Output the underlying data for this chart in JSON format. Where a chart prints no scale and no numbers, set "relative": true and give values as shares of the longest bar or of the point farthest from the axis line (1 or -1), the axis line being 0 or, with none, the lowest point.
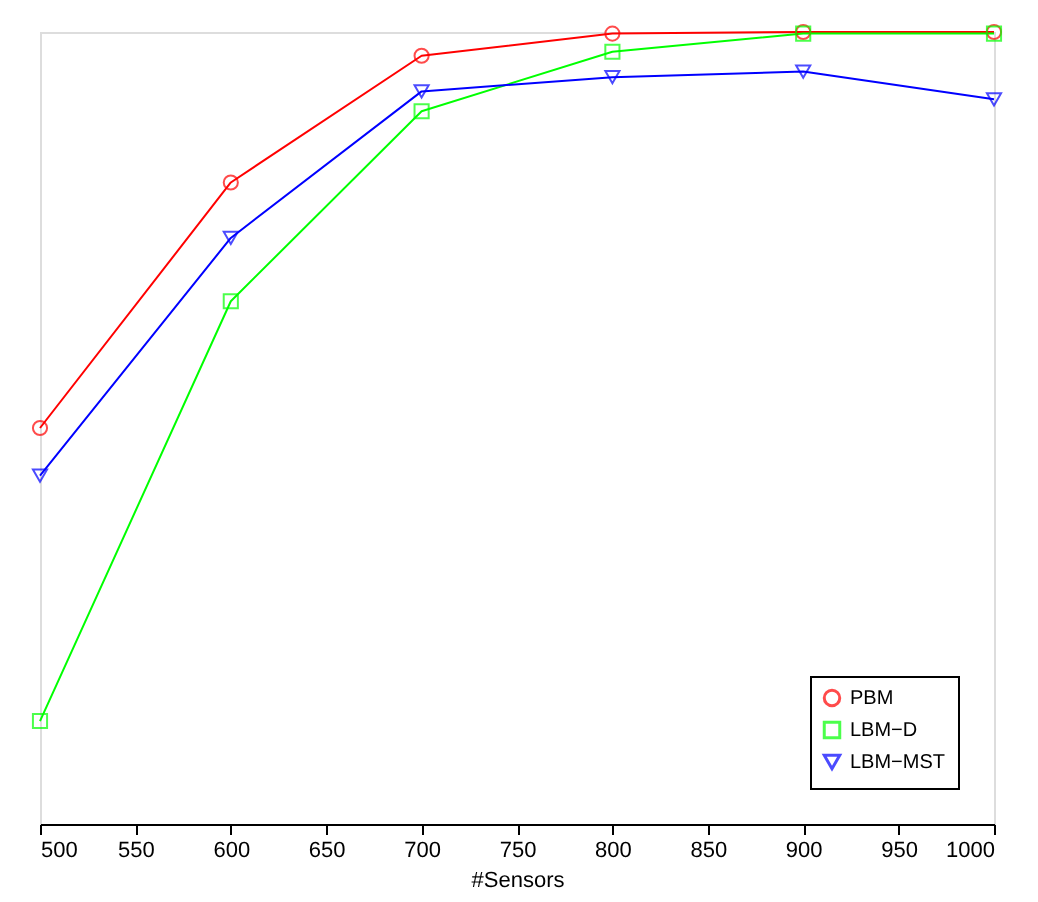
{
  "chart_data": {
    "type": "line",
    "relative": true,
    "xlabel": "#Sensors",
    "x": [
      500,
      600,
      700,
      800,
      900,
      1000
    ],
    "xlim": [
      500,
      1000
    ],
    "xticks": [
      500,
      550,
      600,
      650,
      700,
      750,
      800,
      850,
      900,
      950,
      1000
    ],
    "series": [
      {
        "name": "PBM",
        "color": "#ff0000",
        "marker": "circle",
        "values": [
          0.5,
          0.81,
          0.97,
          0.998,
          1,
          1
        ]
      },
      {
        "name": "LBM−D",
        "color": "#00ff00",
        "marker": "square",
        "values": [
          0.13,
          0.66,
          0.9,
          0.975,
          0.998,
          0.998
        ]
      },
      {
        "name": "LBM−MST",
        "color": "#0000ff",
        "marker": "triangle",
        "values": [
          0.44,
          0.74,
          0.925,
          0.943,
          0.95,
          0.915
        ]
      }
    ],
    "legend": "bottom right",
    "grid": false,
    "line_style": "solid"
  }
}
